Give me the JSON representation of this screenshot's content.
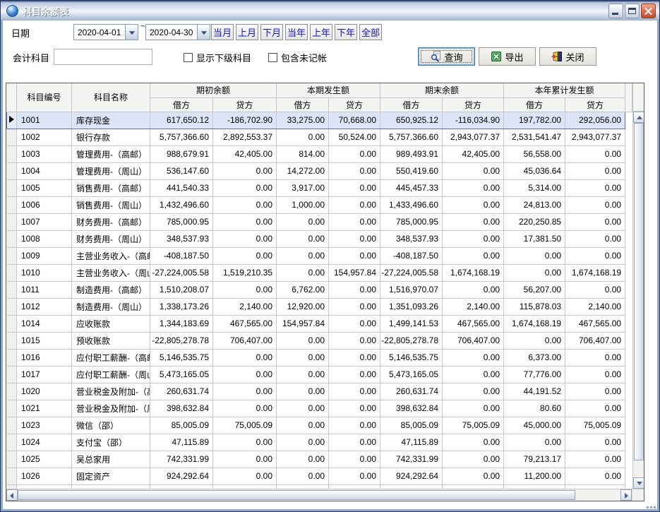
{
  "window": {
    "title": "科目余额表"
  },
  "icons": {
    "app_icon": "globe",
    "minimize": "underscore-bar",
    "maximize": "square-outline",
    "close": "x-cross",
    "combo_dropdown": "triangle-down",
    "query": "magnifier-over-document",
    "export": "excel-green-x",
    "close_action": "exit-door-with-arrow",
    "current_row": "triangle-right",
    "scroll_arrows": "triangle-up-down-left-right",
    "resize_grip": "corner-dots"
  },
  "colors": {
    "quick_button_text": "#1313cf",
    "selection_bg": "#dce4f8",
    "selection_border": "#4f74c9",
    "header_bg": "#f4f4f3",
    "grid_line": "#c9c9c9",
    "close_button": "#c24a2d",
    "titlebar_light": "#e3eaf4"
  },
  "filters": {
    "date_label": "日期",
    "date_from": "2020-04-01",
    "date_to": "2020-04-30",
    "range_separator": "~",
    "quick_buttons": [
      "当月",
      "上月",
      "下月",
      "当年",
      "上年",
      "下年",
      "全部"
    ],
    "subject_label": "会计科目",
    "subject_value": "",
    "checkbox_show_sub": "显示下级科目",
    "checkbox_include_unposted": "包含未记帐"
  },
  "actions": {
    "query": "查询",
    "export": "导出",
    "close": "关闭"
  },
  "table": {
    "code_label": "科目编号",
    "name_label": "科目名称",
    "group_headers": [
      "期初余额",
      "本期发生额",
      "期末余额",
      "本年累计发生额"
    ],
    "debit_label": "借方",
    "credit_label": "贷方",
    "selected_row_index": 0,
    "rows": [
      [
        "1001",
        "库存现金",
        "617,650.12",
        "-186,702.90",
        "33,275.00",
        "70,668.00",
        "650,925.12",
        "-116,034.90",
        "197,782.00",
        "292,056.00"
      ],
      [
        "1002",
        "银行存款",
        "5,757,366.60",
        "2,892,553.37",
        "0.00",
        "50,524.00",
        "5,757,366.60",
        "2,943,077.37",
        "2,531,541.47",
        "2,943,077.37"
      ],
      [
        "1003",
        "管理费用-（高邮）",
        "988,679.91",
        "42,405.00",
        "814.00",
        "0.00",
        "989,493.91",
        "42,405.00",
        "56,558.00",
        "0.00"
      ],
      [
        "1004",
        "管理费用-（周山）",
        "536,147.60",
        "0.00",
        "14,272.00",
        "0.00",
        "550,419.60",
        "0.00",
        "45,036.64",
        "0.00"
      ],
      [
        "1005",
        "销售费用-（高邮）",
        "441,540.33",
        "0.00",
        "3,917.00",
        "0.00",
        "445,457.33",
        "0.00",
        "5,314.00",
        "0.00"
      ],
      [
        "1006",
        "销售费用-（周山）",
        "1,432,496.60",
        "0.00",
        "1,000.00",
        "0.00",
        "1,433,496.60",
        "0.00",
        "24,813.00",
        "0.00"
      ],
      [
        "1007",
        "财务费用-（高邮）",
        "785,000.95",
        "0.00",
        "0.00",
        "0.00",
        "785,000.95",
        "0.00",
        "220,250.85",
        "0.00"
      ],
      [
        "1008",
        "财务费用-（周山）",
        "348,537.93",
        "0.00",
        "0.00",
        "0.00",
        "348,537.93",
        "0.00",
        "17,381.50",
        "0.00"
      ],
      [
        "1009",
        "主营业务收入-（高邮）",
        "-408,187.50",
        "0.00",
        "0.00",
        "0.00",
        "-408,187.50",
        "0.00",
        "0.00",
        "0.00"
      ],
      [
        "1010",
        "主营业务收入-（周山）",
        "-27,224,005.58",
        "1,519,210.35",
        "0.00",
        "154,957.84",
        "-27,224,005.58",
        "1,674,168.19",
        "0.00",
        "1,674,168.19"
      ],
      [
        "1011",
        "制造费用-（高邮）",
        "1,510,208.07",
        "0.00",
        "6,762.00",
        "0.00",
        "1,516,970.07",
        "0.00",
        "56,207.00",
        "0.00"
      ],
      [
        "1012",
        "制造费用-（周山）",
        "1,338,173.26",
        "2,140.00",
        "12,920.00",
        "0.00",
        "1,351,093.26",
        "2,140.00",
        "115,878.03",
        "2,140.00"
      ],
      [
        "1014",
        "应收账款",
        "1,344,183.69",
        "467,565.00",
        "154,957.84",
        "0.00",
        "1,499,141.53",
        "467,565.00",
        "1,674,168.19",
        "467,565.00"
      ],
      [
        "1015",
        "预收账款",
        "-22,805,278.78",
        "706,407.00",
        "0.00",
        "0.00",
        "-22,805,278.78",
        "706,407.00",
        "0.00",
        "706,407.00"
      ],
      [
        "1016",
        "应付职工薪酬-（高邮）",
        "5,146,535.75",
        "0.00",
        "0.00",
        "0.00",
        "5,146,535.75",
        "0.00",
        "6,373.00",
        "0.00"
      ],
      [
        "1017",
        "应付职工薪酬-（周山）",
        "5,473,165.05",
        "0.00",
        "0.00",
        "0.00",
        "5,473,165.05",
        "0.00",
        "77,776.00",
        "0.00"
      ],
      [
        "1020",
        "营业税金及附加-（高邮）",
        "260,631.74",
        "0.00",
        "0.00",
        "0.00",
        "260,631.74",
        "0.00",
        "44,191.52",
        "0.00"
      ],
      [
        "1021",
        "营业税金及附加-（周山）",
        "398,632.84",
        "0.00",
        "0.00",
        "0.00",
        "398,632.84",
        "0.00",
        "80.60",
        "0.00"
      ],
      [
        "1023",
        "微信（邵）",
        "85,005.09",
        "75,005.09",
        "0.00",
        "0.00",
        "85,005.09",
        "75,005.09",
        "45,000.00",
        "75,005.09"
      ],
      [
        "1024",
        "支付宝（邵）",
        "47,115.89",
        "0.00",
        "0.00",
        "0.00",
        "47,115.89",
        "0.00",
        "0.00",
        "0.00"
      ],
      [
        "1025",
        "吴总家用",
        "742,331.99",
        "0.00",
        "0.00",
        "0.00",
        "742,331.99",
        "0.00",
        "79,213.17",
        "0.00"
      ],
      [
        "1026",
        "固定资产",
        "924,292.64",
        "0.00",
        "0.00",
        "0.00",
        "924,292.64",
        "0.00",
        "11,200.00",
        "0.00"
      ]
    ]
  }
}
